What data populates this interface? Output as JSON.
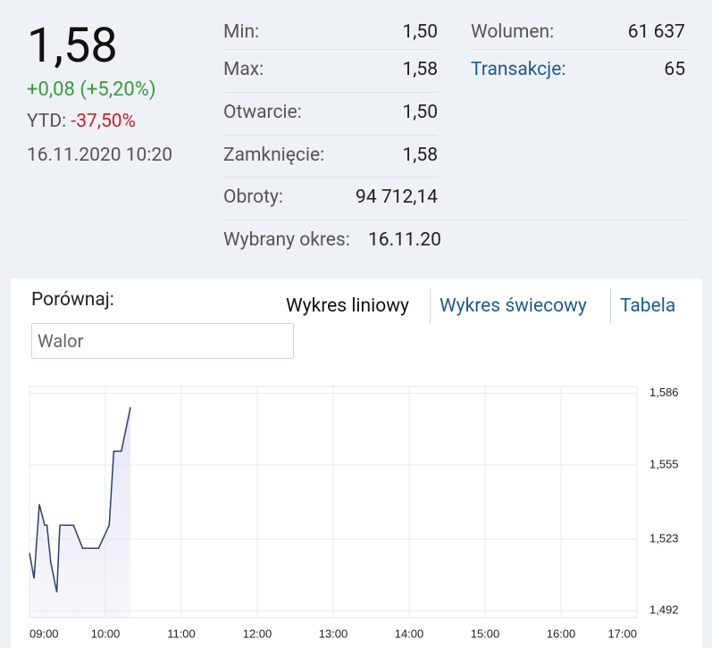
{
  "quote": {
    "price": "1,58",
    "change": "+0,08 (+5,20%)",
    "ytd_label": "YTD:",
    "ytd_value": "-37,50%",
    "datetime": "16.11.2020 10:20"
  },
  "stats": [
    {
      "label": "Min:",
      "value": "1,50"
    },
    {
      "label": "Max:",
      "value": "1,58"
    },
    {
      "label": "Otwarcie:",
      "value": "1,50"
    },
    {
      "label": "Zamknięcie:",
      "value": "1,58"
    },
    {
      "label": "Obroty:",
      "value": "94 712,14"
    }
  ],
  "period": {
    "label": "Wybrany okres:",
    "value": "16.11.20"
  },
  "side_stats": [
    {
      "label": "Wolumen:",
      "value": "61 637"
    },
    {
      "label": "Transakcje:",
      "value": "65"
    }
  ],
  "compare": {
    "label": "Porównaj:",
    "placeholder": "Walor"
  },
  "tabs": [
    "Wykres liniowy",
    "Wykres świecowy",
    "Tabela"
  ],
  "chart_data": {
    "type": "line",
    "x": [
      9.0,
      9.06,
      9.13,
      9.2,
      9.23,
      9.28,
      9.36,
      9.4,
      9.58,
      9.7,
      9.91,
      10.05,
      10.11,
      10.21,
      10.33
    ],
    "series": [
      {
        "color": "#2c3f6e",
        "fill": "#e4e4f4",
        "values": [
          1.517,
          1.506,
          1.538,
          1.529,
          1.529,
          1.513,
          1.5,
          1.529,
          1.529,
          1.519,
          1.519,
          1.529,
          1.561,
          1.561,
          1.58
        ]
      }
    ],
    "xlim": [
      9,
      17
    ],
    "xticks": [
      {
        "value": 9,
        "label": "09:00"
      },
      {
        "value": 10,
        "label": "10:00"
      },
      {
        "value": 11,
        "label": "11:00"
      },
      {
        "value": 12,
        "label": "12:00"
      },
      {
        "value": 13,
        "label": "13:00"
      },
      {
        "value": 14,
        "label": "14:00"
      },
      {
        "value": 15,
        "label": "15:00"
      },
      {
        "value": 16,
        "label": "16:00"
      },
      {
        "value": 17,
        "label": "17:00"
      }
    ],
    "ylim": [
      1.489,
      1.589
    ],
    "yticks": [
      {
        "value": 1.492,
        "label": "1,492"
      },
      {
        "value": 1.523,
        "label": "1,523"
      },
      {
        "value": 1.555,
        "label": "1,555"
      },
      {
        "value": 1.586,
        "label": "1,586"
      }
    ],
    "grid": true
  }
}
